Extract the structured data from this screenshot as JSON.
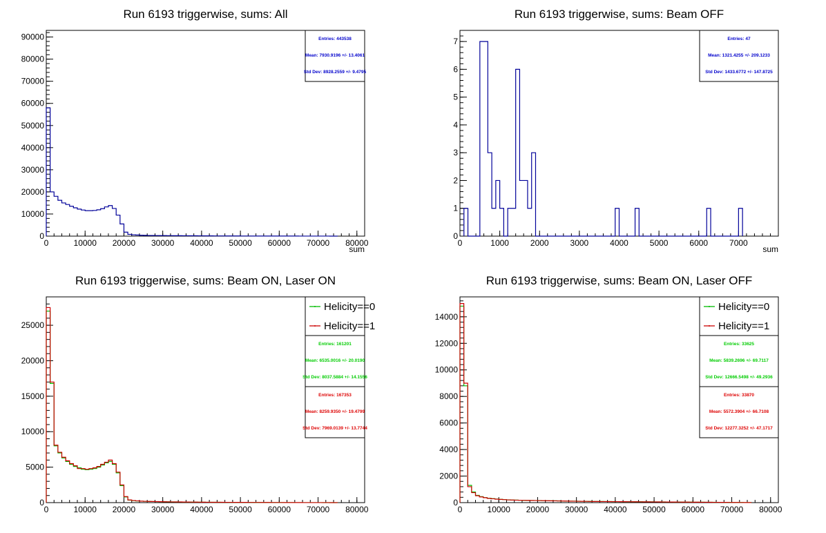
{
  "chart_data": [
    {
      "type": "histogram",
      "title": "Run 6193 triggerwise, sums: All",
      "xlabel": "sum",
      "xlim": [
        0,
        82000
      ],
      "ylim": [
        0,
        93000
      ],
      "xticks": [
        "0",
        "10000",
        "20000",
        "30000",
        "40000",
        "50000",
        "60000",
        "70000",
        "80000"
      ],
      "yticks": [
        "0",
        "10000",
        "20000",
        "30000",
        "40000",
        "50000",
        "60000",
        "70000",
        "80000",
        "90000"
      ],
      "bin_start": 0,
      "bin_width": 1000,
      "series": [
        {
          "color": "#000099",
          "values": [
            58000,
            20000,
            18000,
            16200,
            15000,
            14300,
            13500,
            12800,
            12200,
            11800,
            11500,
            11500,
            11600,
            11900,
            12400,
            13200,
            13800,
            12500,
            9500,
            5500,
            1800,
            800,
            600,
            500,
            400,
            350,
            300,
            280,
            260,
            240,
            230,
            220,
            210,
            200,
            190,
            180,
            170,
            160,
            150,
            140,
            130,
            120,
            110,
            100,
            95,
            90,
            85,
            80,
            75,
            70,
            65,
            60,
            55,
            50,
            48,
            46,
            44,
            42,
            40,
            38,
            36,
            34,
            32,
            30,
            28,
            26,
            24,
            22,
            20,
            18,
            16,
            14,
            12,
            10,
            8
          ]
        }
      ],
      "stats": [
        {
          "color": "#0000cc",
          "entries": "Entries: 443538",
          "mean": "Mean: 7930.9196 +/- 13.4061",
          "stddev": "Std Dev: 8928.2559 +/- 9.4795"
        }
      ]
    },
    {
      "type": "histogram",
      "title": "Run 6193 triggerwise, sums: Beam OFF",
      "xlabel": "sum",
      "xlim": [
        0,
        8000
      ],
      "ylim": [
        0,
        7.4
      ],
      "xticks": [
        "0",
        "1000",
        "2000",
        "3000",
        "4000",
        "5000",
        "6000",
        "7000"
      ],
      "yticks": [
        "0",
        "1",
        "2",
        "3",
        "4",
        "5",
        "6",
        "7"
      ],
      "bin_start": 100,
      "bin_width": 100,
      "series": [
        {
          "color": "#000099",
          "values": [
            1,
            0,
            0,
            0,
            7,
            7,
            3,
            1,
            2,
            1,
            0,
            1,
            1,
            6,
            2,
            2,
            1,
            3,
            0,
            0,
            0,
            0,
            0,
            0,
            0,
            0,
            0,
            0,
            0,
            0,
            0,
            0,
            0,
            0,
            0,
            0,
            0,
            0,
            1,
            0,
            0,
            0,
            0,
            1,
            0,
            0,
            0,
            0,
            0,
            0,
            0,
            0,
            0,
            0,
            0,
            0,
            0,
            0,
            0,
            0,
            0,
            1,
            0,
            0,
            0,
            0,
            0,
            0,
            0,
            1
          ]
        }
      ],
      "stats": [
        {
          "color": "#0000cc",
          "entries": "Entries: 47",
          "mean": "Mean: 1321.4255 +/- 209.1233",
          "stddev": "Std Dev: 1433.6772 +/- 147.8725"
        }
      ]
    },
    {
      "type": "histogram",
      "title": "Run 6193 triggerwise, sums: Beam ON, Laser ON",
      "xlabel": "",
      "xlim": [
        0,
        82000
      ],
      "ylim": [
        0,
        29000
      ],
      "xticks": [
        "0",
        "10000",
        "20000",
        "30000",
        "40000",
        "50000",
        "60000",
        "70000",
        "80000"
      ],
      "yticks": [
        "0",
        "5000",
        "10000",
        "15000",
        "20000",
        "25000"
      ],
      "bin_start": 0,
      "bin_width": 1000,
      "legend": [
        "Helicity==0",
        "Helicity==1"
      ],
      "series": [
        {
          "name": "Helicity==0",
          "color": "#00bb00",
          "values": [
            27000,
            16800,
            8000,
            7000,
            6300,
            5800,
            5400,
            5100,
            4900,
            4700,
            4650,
            4700,
            4800,
            5000,
            5300,
            5600,
            5800,
            5400,
            4200,
            2400,
            800,
            350,
            280,
            230,
            200,
            180,
            160,
            150,
            140,
            130,
            120,
            110,
            100,
            95,
            90,
            85,
            80,
            75,
            70,
            65,
            60,
            55,
            50,
            48,
            46,
            44,
            42,
            40,
            38,
            36,
            34,
            32,
            30,
            28,
            26,
            24,
            22,
            20,
            18,
            16,
            14,
            12,
            10,
            9,
            8,
            7,
            6,
            5,
            5,
            4,
            4,
            3,
            3,
            2,
            2
          ]
        },
        {
          "name": "Helicity==1",
          "color": "#cc0000",
          "values": [
            27500,
            17000,
            8100,
            7100,
            6400,
            5900,
            5500,
            5200,
            4800,
            4800,
            4700,
            4800,
            4900,
            5100,
            5400,
            5700,
            6000,
            5500,
            4300,
            2500,
            850,
            380,
            300,
            250,
            210,
            190,
            170,
            155,
            145,
            135,
            125,
            115,
            105,
            100,
            95,
            88,
            82,
            77,
            72,
            67,
            62,
            57,
            52,
            50,
            48,
            46,
            44,
            42,
            40,
            38,
            36,
            34,
            32,
            30,
            28,
            26,
            24,
            22,
            20,
            18,
            16,
            14,
            12,
            11,
            10,
            9,
            8,
            7,
            6,
            5,
            5,
            4,
            4,
            3,
            3
          ]
        }
      ],
      "stats": [
        {
          "color": "#00cc00",
          "entries": "Entries: 161201",
          "mean": "Mean: 6535.0016 +/- 20.0190",
          "stddev": "Std Dev: 8037.5884 +/- 14.1556"
        },
        {
          "color": "#dd0000",
          "entries": "Entries: 167353",
          "mean": "Mean: 8259.9350 +/- 19.4799",
          "stddev": "Std Dev: 7969.0139 +/- 13.7744"
        }
      ]
    },
    {
      "type": "histogram",
      "title": "Run 6193 triggerwise, sums: Beam ON, Laser OFF",
      "xlabel": "",
      "xlim": [
        0,
        82000
      ],
      "ylim": [
        0,
        15500
      ],
      "xticks": [
        "0",
        "10000",
        "20000",
        "30000",
        "40000",
        "50000",
        "60000",
        "70000",
        "80000"
      ],
      "yticks": [
        "0",
        "2000",
        "4000",
        "6000",
        "8000",
        "10000",
        "12000",
        "14000"
      ],
      "bin_start": 0,
      "bin_width": 1000,
      "legend": [
        "Helicity==0",
        "Helicity==1"
      ],
      "series": [
        {
          "name": "Helicity==0",
          "color": "#00bb00",
          "values": [
            14800,
            8800,
            1300,
            800,
            550,
            450,
            380,
            330,
            300,
            270,
            250,
            230,
            210,
            200,
            190,
            180,
            175,
            170,
            165,
            160,
            155,
            150,
            145,
            140,
            135,
            130,
            125,
            120,
            115,
            110,
            105,
            100,
            95,
            90,
            88,
            86,
            84,
            82,
            80,
            78,
            76,
            74,
            72,
            70,
            68,
            66,
            64,
            62,
            60,
            58,
            56,
            54,
            52,
            50,
            48,
            46,
            44,
            42,
            40,
            38,
            36,
            34,
            32,
            30,
            28,
            26,
            24,
            22,
            20,
            18,
            16,
            14,
            12,
            10,
            8
          ]
        },
        {
          "name": "Helicity==1",
          "color": "#cc0000",
          "values": [
            15000,
            9000,
            1200,
            750,
            520,
            430,
            370,
            320,
            290,
            260,
            240,
            225,
            205,
            195,
            185,
            178,
            172,
            168,
            162,
            158,
            152,
            148,
            142,
            138,
            132,
            128,
            122,
            118,
            112,
            108,
            102,
            98,
            93,
            88,
            86,
            84,
            82,
            80,
            78,
            76,
            74,
            72,
            70,
            68,
            66,
            64,
            62,
            60,
            58,
            56,
            54,
            52,
            50,
            48,
            46,
            44,
            42,
            40,
            38,
            36,
            34,
            32,
            30,
            28,
            26,
            24,
            22,
            20,
            18,
            16,
            14,
            12,
            10,
            8,
            6
          ]
        }
      ],
      "stats": [
        {
          "color": "#00cc00",
          "entries": "Entries: 33625",
          "mean": "Mean: 5839.2696 +/- 69.7117",
          "stddev": "Std Dev: 12666.5498 +/- 49.2936"
        },
        {
          "color": "#dd0000",
          "entries": "Entries: 33870",
          "mean": "Mean: 5572.3904 +/- 66.7108",
          "stddev": "Std Dev: 12277.3252 +/- 47.1717"
        }
      ]
    }
  ]
}
